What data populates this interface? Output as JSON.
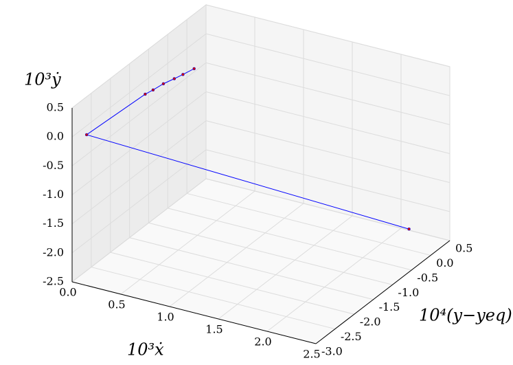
{
  "chart_data": {
    "type": "line3d",
    "x_label": "10³ẋ",
    "y_label": "10⁴(y−yeq)",
    "z_label": "10³ẏ",
    "xlim": [
      0,
      2.5
    ],
    "ylim": [
      -3,
      0.5
    ],
    "zlim": [
      -2.5,
      0.5
    ],
    "xticks": [
      {
        "value": 0,
        "label": "0.0"
      },
      0.5,
      {
        "value": 1,
        "label": "1.0"
      },
      1.5,
      {
        "value": 2,
        "label": "2.0"
      },
      2.5
    ],
    "yticks": [
      {
        "value": -3,
        "label": "-3.0"
      },
      -2.5,
      {
        "value": -2,
        "label": "-2.0"
      },
      -1.5,
      {
        "value": -1,
        "label": "-1.0"
      },
      -0.5,
      {
        "value": 0,
        "label": "0.0"
      },
      0.5
    ],
    "zticks": [
      -2.5,
      {
        "value": -2,
        "label": "-2.0"
      },
      -1.5,
      {
        "value": -1,
        "label": "-1.0"
      },
      -0.5,
      {
        "value": 0,
        "label": "0.0"
      },
      0.5
    ],
    "grid": true,
    "series": [
      {
        "color": "#0000ff",
        "marker_color": "#cc0000",
        "x": [
          2.36,
          0.09,
          0.31,
          0.34,
          0.375,
          0.42,
          0.45,
          0.49
        ],
        "y": [
          -0.21,
          -2.85,
          -1.88,
          -1.75,
          -1.57,
          -1.4,
          -1.25,
          -1.06
        ],
        "z": [
          -2.0,
          0.0,
          0.3,
          0.32,
          0.35,
          0.37,
          0.38,
          0.4
        ]
      }
    ]
  }
}
